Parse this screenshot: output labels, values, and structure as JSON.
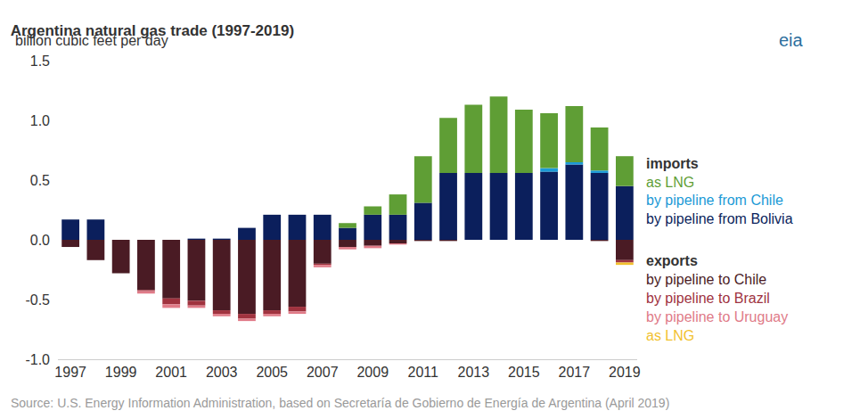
{
  "chart_data": {
    "type": "bar",
    "title": "Argentina natural gas trade (1997-2019)",
    "subtitle": "billion cubic feet per day",
    "source": "Source: U.S. Energy Information Administration, based on Secretaría de Gobierno de Energía de Argentina (April 2019)",
    "logo": "eia",
    "stacked": true,
    "grid": false,
    "x": [
      1997,
      1998,
      1999,
      2000,
      2001,
      2002,
      2003,
      2004,
      2005,
      2006,
      2007,
      2008,
      2009,
      2010,
      2011,
      2012,
      2013,
      2014,
      2015,
      2016,
      2017,
      2018,
      2019
    ],
    "xlim": [
      1996.5,
      2019.5
    ],
    "xticks": [
      1997,
      1999,
      2001,
      2003,
      2005,
      2007,
      2009,
      2011,
      2013,
      2015,
      2017,
      2019
    ],
    "ylim": [
      -1.0,
      1.5
    ],
    "yticks": [
      {
        "value": -1.0,
        "label": "-1.0"
      },
      -0.5,
      {
        "value": 0.0,
        "label": "0.0"
      },
      0.5,
      {
        "value": 1.0,
        "label": "1.0"
      },
      1.5
    ],
    "series": [
      {
        "group": "imports",
        "name": "as LNG",
        "color": "#5f9e35",
        "values": [
          0,
          0,
          0,
          0,
          0,
          0,
          0,
          0,
          0,
          0,
          0,
          0.04,
          0.07,
          0.17,
          0.39,
          0.46,
          0.57,
          0.64,
          0.53,
          0.46,
          0.47,
          0.36,
          0.25
        ]
      },
      {
        "group": "imports",
        "name": "by pipeline from Chile",
        "color": "#1b9ad6",
        "values": [
          0,
          0,
          0,
          0,
          0,
          0,
          0,
          0,
          0,
          0,
          0,
          0,
          0,
          0,
          0,
          0,
          0,
          0,
          0,
          0.03,
          0.02,
          0.02,
          0
        ]
      },
      {
        "group": "imports",
        "name": "by pipeline from Bolivia",
        "color": "#0b1f5c",
        "values": [
          0.17,
          0.17,
          0,
          0,
          0,
          0.01,
          0.01,
          0.1,
          0.21,
          0.21,
          0.21,
          0.1,
          0.21,
          0.21,
          0.31,
          0.56,
          0.56,
          0.56,
          0.56,
          0.57,
          0.63,
          0.56,
          0.45
        ]
      },
      {
        "group": "exports",
        "name": "by pipeline to Chile",
        "color": "#4a1b24",
        "values": [
          -0.06,
          -0.17,
          -0.28,
          -0.42,
          -0.49,
          -0.51,
          -0.59,
          -0.62,
          -0.59,
          -0.56,
          -0.2,
          -0.06,
          -0.05,
          -0.03,
          -0.01,
          -0.01,
          0,
          0,
          0,
          0,
          0,
          -0.01,
          -0.17
        ]
      },
      {
        "group": "exports",
        "name": "by pipeline to Brazil",
        "color": "#a0333f",
        "values": [
          0,
          0,
          0,
          -0.01,
          -0.05,
          -0.04,
          -0.03,
          -0.04,
          -0.03,
          -0.04,
          -0.01,
          0,
          0,
          0,
          0,
          0,
          0,
          0,
          0,
          0,
          0,
          0,
          -0.02
        ]
      },
      {
        "group": "exports",
        "name": "by pipeline to Uruguay",
        "color": "#e07b88",
        "values": [
          0,
          0,
          0,
          -0.02,
          -0.03,
          -0.02,
          -0.02,
          -0.02,
          -0.02,
          -0.02,
          -0.02,
          -0.02,
          -0.02,
          -0.01,
          0,
          0,
          0,
          0,
          0,
          0,
          0,
          0,
          0
        ]
      },
      {
        "group": "exports",
        "name": "as LNG",
        "color": "#f2c12e",
        "values": [
          0,
          0,
          0,
          0,
          0,
          0,
          0,
          0,
          0,
          0,
          0,
          0,
          0,
          0,
          0,
          0,
          0,
          0,
          0,
          0,
          0,
          0,
          -0.02
        ]
      }
    ]
  }
}
